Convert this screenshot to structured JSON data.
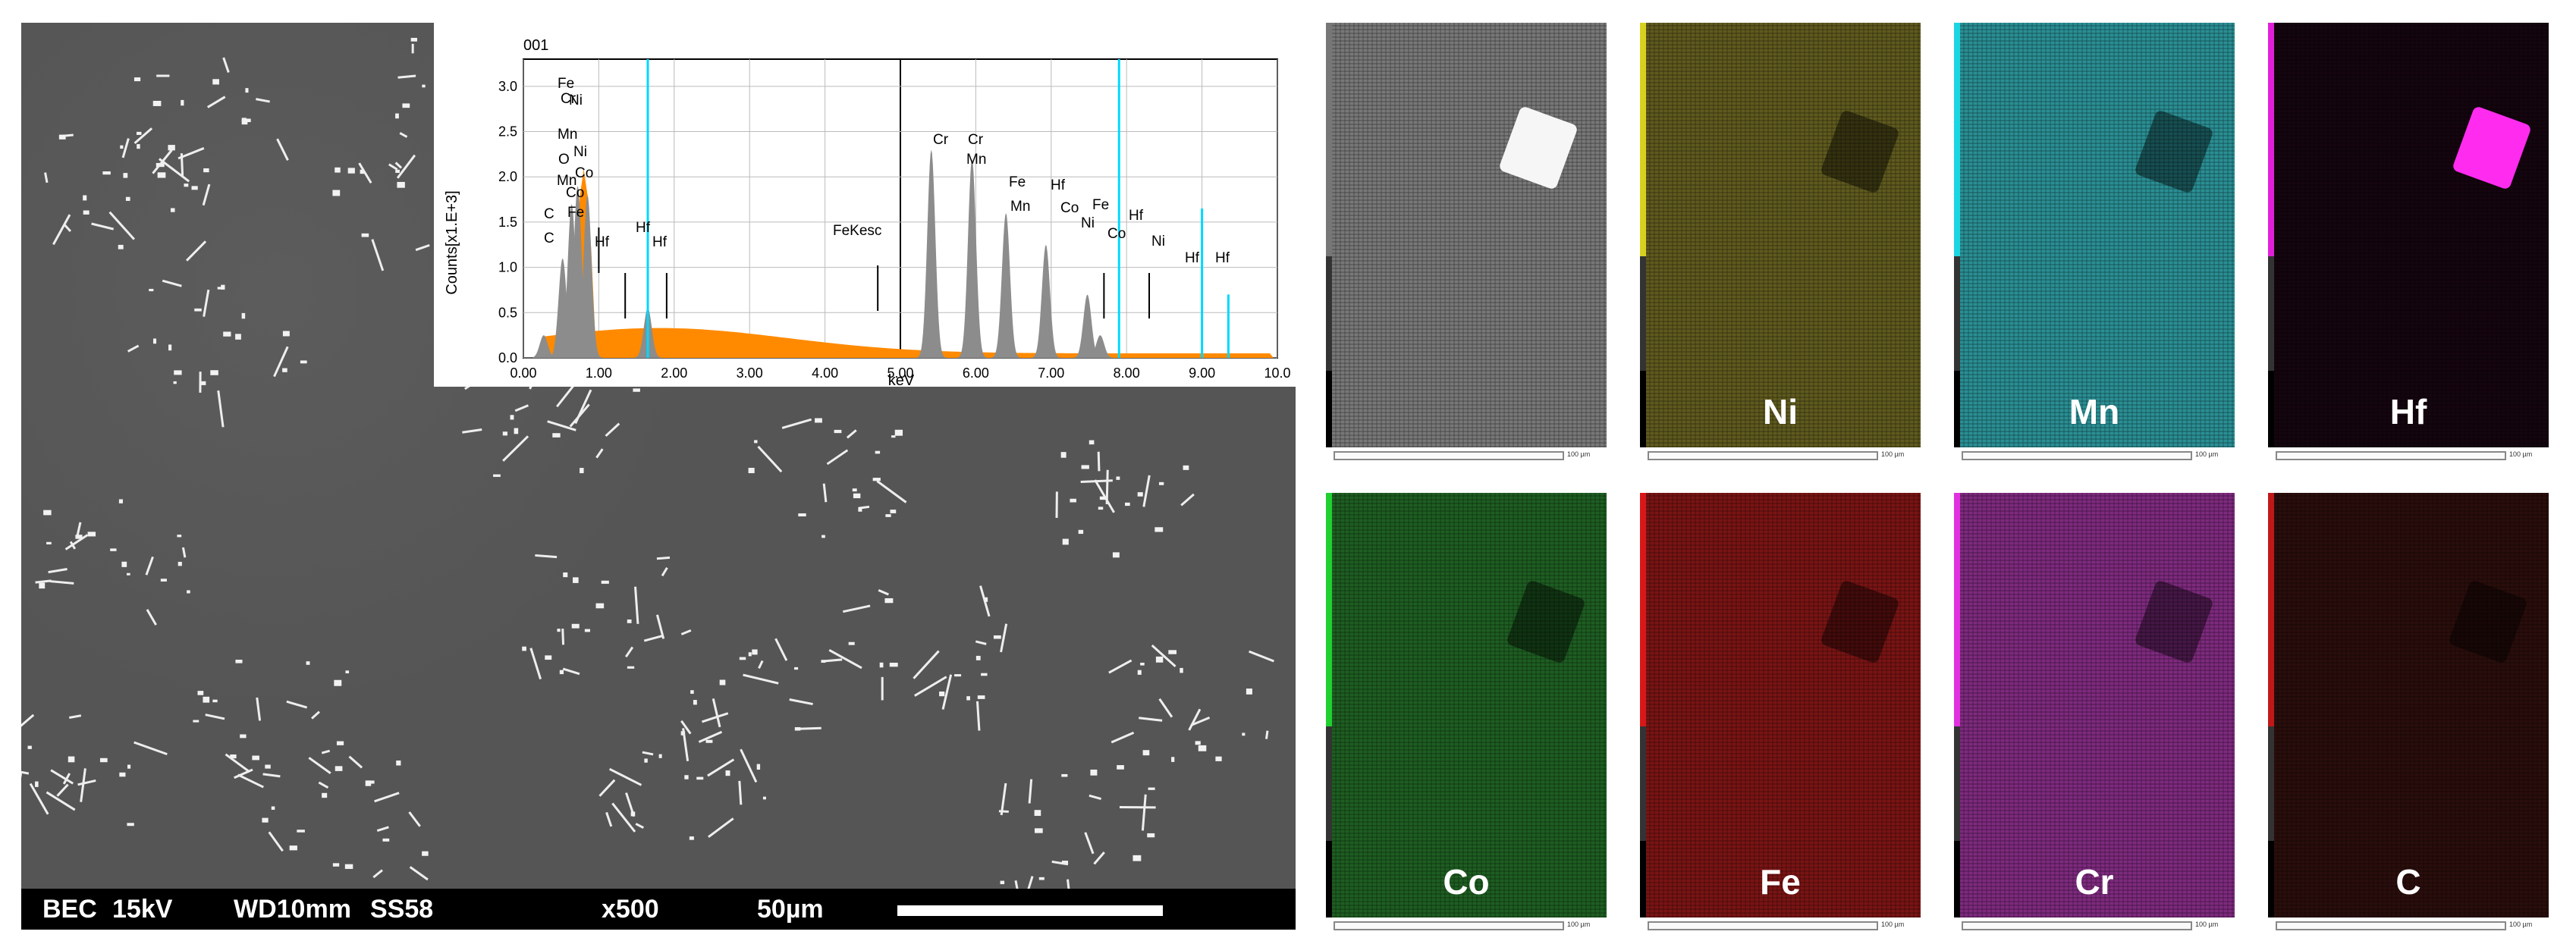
{
  "sem": {
    "info_bec": "BEC",
    "info_kv": "15kV",
    "info_wd": "WD10mm",
    "info_ss": "SS58",
    "magnification": "x500",
    "scale": "50µm"
  },
  "eds": {
    "spectrum_id": "001",
    "colors": {
      "background_spectrum": "#ff8a00",
      "gray_peaks": "#8c8c8c",
      "markers": "#00d8ff"
    },
    "peak_labels": [
      "Fe",
      "Cr",
      "Ni",
      "Mn",
      "O",
      "C",
      "Mn",
      "Co",
      "Ni",
      "Co",
      "Fe",
      "C",
      "Hf",
      "Hf",
      "Hf",
      "FeKesc",
      "Cr",
      "Cr",
      "Mn",
      "Fe",
      "Mn",
      "Hf",
      "Co",
      "Ni",
      "Fe",
      "Co",
      "Hf",
      "Ni",
      "Hf",
      "Hf"
    ]
  },
  "chart_data": {
    "type": "line",
    "title": "",
    "xlabel": "keV",
    "ylabel": "Counts[x1.E+3]",
    "xlim": [
      0.0,
      10.0
    ],
    "ylim": [
      0.0,
      3.3
    ],
    "x_ticks": [
      "0.00",
      "1.00",
      "2.00",
      "3.00",
      "4.00",
      "5.00",
      "6.00",
      "7.00",
      "8.00",
      "9.00",
      "10.0"
    ],
    "y_ticks": [
      "0.0",
      "0.5",
      "1.0",
      "1.5",
      "2.0",
      "2.5",
      "3.0"
    ],
    "series": [
      {
        "peaks": [
          {
            "x": 0.27,
            "y": 0.25
          },
          {
            "x": 0.52,
            "y": 1.1
          },
          {
            "x": 0.64,
            "y": 1.7
          },
          {
            "x": 0.72,
            "y": 1.9
          },
          {
            "x": 0.85,
            "y": 1.8
          },
          {
            "x": 1.65,
            "y": 0.55
          },
          {
            "x": 5.41,
            "y": 2.3
          },
          {
            "x": 5.95,
            "y": 2.2
          },
          {
            "x": 6.4,
            "y": 1.6
          },
          {
            "x": 6.93,
            "y": 1.25
          },
          {
            "x": 7.48,
            "y": 0.7
          },
          {
            "x": 7.65,
            "y": 0.25
          }
        ]
      }
    ],
    "vertical_markers_x": [
      1.65,
      7.9,
      9.0,
      9.35
    ]
  },
  "maps": [
    {
      "label": "",
      "bg": "#787878",
      "bar": "#777777"
    },
    {
      "label": "Ni",
      "bg": "#5f5a1e",
      "bar": "#d8d020"
    },
    {
      "label": "Mn",
      "bg": "#2a8f94",
      "bar": "#1ad6e0"
    },
    {
      "label": "Hf",
      "bg": "#15050f",
      "bar": "#e020d8"
    },
    {
      "label": "Co",
      "bg": "#1e5e22",
      "bar": "#20d030"
    },
    {
      "label": "Fe",
      "bg": "#7a1414",
      "bar": "#d81818"
    },
    {
      "label": "Cr",
      "bg": "#7e2a7e",
      "bar": "#e030e0"
    },
    {
      "label": "C",
      "bg": "#2a0e0c",
      "bar": "#c01818"
    }
  ],
  "map_scale_text": "100 µm"
}
